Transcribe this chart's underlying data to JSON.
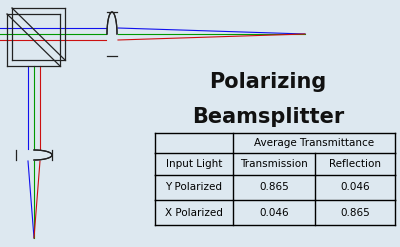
{
  "title_line1": "Polarizing",
  "title_line2": "Beamsplitter",
  "title_fontsize": 15,
  "title_fontweight": "bold",
  "background_color": "#dde8f0",
  "table_header_span": "Average Transmittance",
  "table_col_headers": [
    "Input Light",
    "Transmission",
    "Reflection"
  ],
  "table_data": [
    [
      "Y Polarized",
      "0.865",
      "0.046"
    ],
    [
      "X Polarized",
      "0.046",
      "0.865"
    ]
  ],
  "table_fontsize": 7.5,
  "ray_colors": [
    "#1010ee",
    "#009900",
    "#cc1010"
  ],
  "outline_color": "#222222",
  "text_color": "#111111",
  "figw": 4.0,
  "figh": 2.47,
  "dpi": 100
}
